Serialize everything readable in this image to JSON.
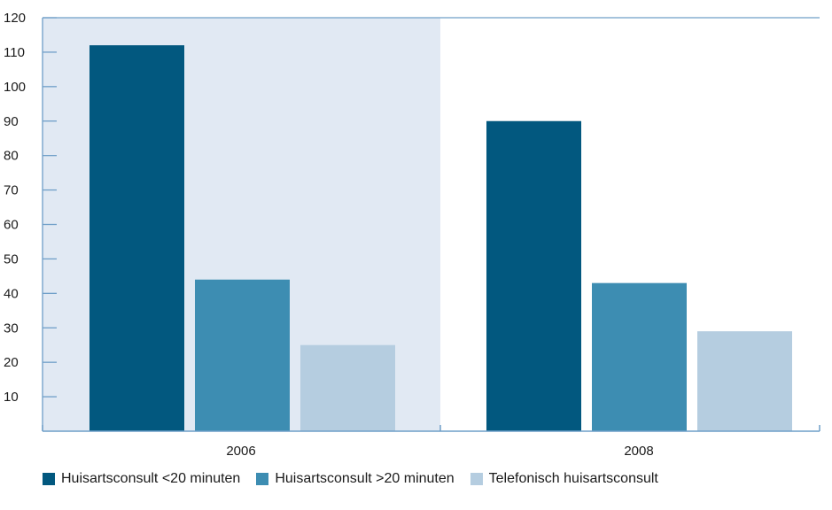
{
  "chart_data": {
    "type": "bar",
    "categories": [
      "2006",
      "2008"
    ],
    "series": [
      {
        "name": "Huisartsconsult <20 minuten",
        "values": [
          112,
          90
        ],
        "color": "#02587f"
      },
      {
        "name": "Huisartsconsult >20 minuten",
        "values": [
          44,
          43
        ],
        "color": "#3d8db2"
      },
      {
        "name": "Telefonisch huisartsconsult",
        "values": [
          25,
          29
        ],
        "color": "#b5cde0"
      }
    ],
    "yticks": [
      10,
      20,
      30,
      40,
      50,
      60,
      70,
      80,
      90,
      100,
      110,
      120
    ],
    "ylim": [
      0,
      120
    ],
    "title": "",
    "xlabel": "",
    "ylabel": "",
    "grid": false,
    "legend_position": "bottom",
    "highlight_color": "#e1e9f3",
    "axis_color": "#6f9fc8"
  }
}
